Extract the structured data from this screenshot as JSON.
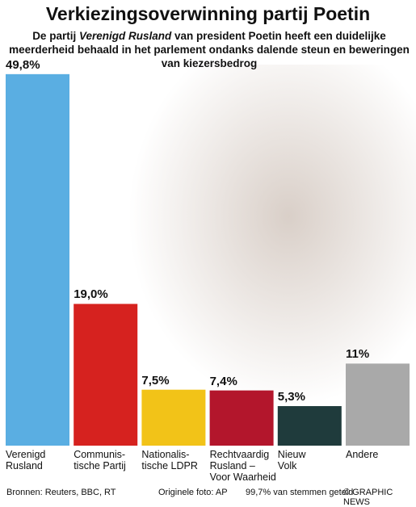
{
  "chart_data": {
    "type": "bar",
    "title": "Verkiezingsoverwinning partij Poetin",
    "subtitle_parts": [
      "De partij ",
      "Verenigd Rusland",
      " van president Poetin heeft een duidelijke meerderheid behaald in het parlement ondanks dalende steun en beweringen van kiezersbedrog"
    ],
    "categories": [
      "Verenigd\nRusland",
      "Communis-\ntische Partij",
      "Nationalis-\ntische LDPR",
      "Rechtvaardig\nRusland –\nVoor Waarheid",
      "Nieuw\nVolk",
      "Andere"
    ],
    "values": [
      49.8,
      19.0,
      7.5,
      7.4,
      5.3,
      11
    ],
    "value_labels": [
      "49,8%",
      "19,0%",
      "7,5%",
      "7,4%",
      "5,3%",
      "11%"
    ],
    "colors": [
      "#5aaee2",
      "#d6221f",
      "#f2c318",
      "#b3162c",
      "#1f3b3c",
      "#a9a9a9"
    ],
    "ylim": [
      0,
      50
    ],
    "sources": "Bronnen: Reuters, BBC, RT",
    "photo_credit": "Originele foto: AP",
    "note": "99,7% van stemmen geteld",
    "credit": "© GRAPHIC NEWS"
  }
}
